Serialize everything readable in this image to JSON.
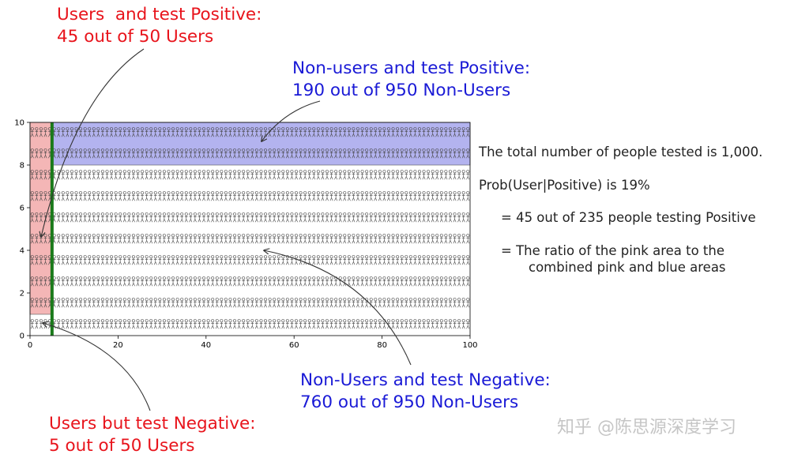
{
  "chart_data": {
    "type": "area",
    "xlim": [
      0,
      100
    ],
    "ylim": [
      0,
      10
    ],
    "x_ticks": [
      "0",
      "20",
      "40",
      "60",
      "80",
      "100"
    ],
    "y_ticks": [
      "0",
      "2",
      "4",
      "6",
      "8",
      "10"
    ],
    "grid": false,
    "regions": [
      {
        "label": "users-positive",
        "x": [
          0,
          5
        ],
        "y": [
          1,
          10
        ],
        "color": "#f4b6b6"
      },
      {
        "label": "nonusers-positive",
        "x": [
          5,
          100
        ],
        "y": [
          8,
          10
        ],
        "color": "#b3b3ef"
      }
    ],
    "divider_x": 5,
    "divider_color": "#1a7a1a",
    "people_rows": 10,
    "people_per_row": 100,
    "annotations": {
      "users_positive": [
        "Users  and test Positive:",
        "45 out of 50 Users"
      ],
      "nonusers_positive": [
        "Non-users and test Positive:",
        "190 out of 950 Non-Users"
      ],
      "nonusers_negative": [
        "Non-Users and test Negative:",
        "760 out of 950 Non-Users"
      ],
      "users_negative": [
        "Users but test Negative:",
        "5 out of 50 Users"
      ]
    },
    "summary": [
      "The total number of people tested is 1,000.",
      "Prob(User|Positive) is 19%",
      "= 45 out of 235 people testing Positive",
      "= The ratio of the pink area to the",
      "combined pink and blue areas"
    ],
    "watermark": "知乎 @陈思源深度学习"
  },
  "colors": {
    "annotation_red": "#e8141c",
    "annotation_blue": "#1a1ad6"
  }
}
